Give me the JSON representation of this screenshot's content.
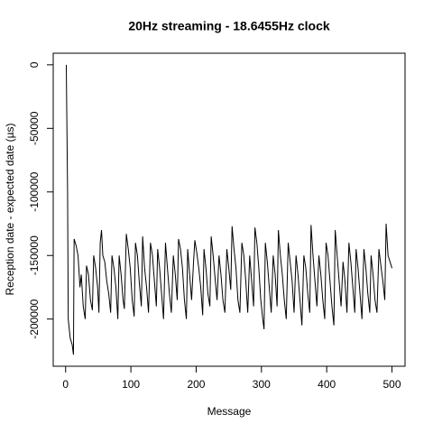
{
  "chart_data": {
    "type": "line",
    "title": "20Hz streaming - 18.6455Hz clock",
    "x_label": "Message",
    "y_label": "Reception date - expected date (µs)",
    "xlim": [
      -19,
      520
    ],
    "ylim": [
      -237120,
      9120
    ],
    "xticks": [
      0,
      100,
      200,
      300,
      400,
      500
    ],
    "yticks": [
      0,
      -50000,
      -100000,
      -150000,
      -200000
    ],
    "x": [
      1,
      3,
      4,
      7,
      10,
      12,
      13,
      16,
      19,
      22,
      24,
      27,
      30,
      32,
      35,
      38,
      41,
      43,
      46,
      49,
      51,
      53,
      55,
      57,
      60,
      63,
      66,
      69,
      71,
      74,
      77,
      80,
      82,
      85,
      88,
      90,
      93,
      96,
      99,
      102,
      105,
      107,
      110,
      113,
      116,
      118,
      121,
      124,
      127,
      130,
      133,
      136,
      139,
      141,
      144,
      147,
      150,
      153,
      156,
      159,
      162,
      165,
      168,
      171,
      173,
      176,
      179,
      182,
      185,
      187,
      190,
      193,
      196,
      198,
      201,
      204,
      207,
      210,
      212,
      215,
      218,
      221,
      223,
      226,
      229,
      232,
      235,
      238,
      241,
      244,
      247,
      250,
      253,
      255,
      258,
      261,
      264,
      267,
      270,
      273,
      276,
      279,
      282,
      285,
      288,
      290,
      293,
      296,
      299,
      302,
      304,
      306,
      309,
      312,
      315,
      318,
      321,
      324,
      326,
      329,
      332,
      335,
      338,
      341,
      344,
      347,
      350,
      353,
      356,
      359,
      362,
      365,
      368,
      371,
      374,
      376,
      379,
      382,
      385,
      388,
      391,
      394,
      397,
      399,
      402,
      405,
      408,
      411,
      413,
      416,
      419,
      422,
      425,
      428,
      431,
      434,
      437,
      440,
      443,
      445,
      448,
      451,
      454,
      457,
      460,
      463,
      466,
      468,
      471,
      474,
      477,
      480,
      483,
      486,
      489,
      491,
      494,
      497,
      500
    ],
    "series": [
      {
        "color": "#000000",
        "values": [
          0,
          -100000,
          -200000,
          -215000,
          -220000,
          -228000,
          -137000,
          -142000,
          -150000,
          -175000,
          -165000,
          -190000,
          -200000,
          -158000,
          -165000,
          -185000,
          -193000,
          -150000,
          -160000,
          -175000,
          -195000,
          -140000,
          -130000,
          -150000,
          -155000,
          -170000,
          -180000,
          -195000,
          -150000,
          -160000,
          -175000,
          -200000,
          -150000,
          -165000,
          -185000,
          -192000,
          -133000,
          -145000,
          -160000,
          -185000,
          -198000,
          -140000,
          -150000,
          -172000,
          -190000,
          -135000,
          -160000,
          -175000,
          -195000,
          -140000,
          -150000,
          -170000,
          -190000,
          -145000,
          -160000,
          -180000,
          -200000,
          -140000,
          -160000,
          -180000,
          -195000,
          -150000,
          -165000,
          -185000,
          -137000,
          -145000,
          -160000,
          -185000,
          -200000,
          -145000,
          -165000,
          -185000,
          -155000,
          -138000,
          -148000,
          -160000,
          -175000,
          -197000,
          -145000,
          -160000,
          -180000,
          -190000,
          -135000,
          -150000,
          -168000,
          -185000,
          -150000,
          -165000,
          -185000,
          -195000,
          -145000,
          -160000,
          -177000,
          -127000,
          -145000,
          -160000,
          -185000,
          -195000,
          -140000,
          -150000,
          -170000,
          -195000,
          -150000,
          -170000,
          -190000,
          -128000,
          -140000,
          -160000,
          -185000,
          -200000,
          -208000,
          -140000,
          -155000,
          -175000,
          -195000,
          -150000,
          -165000,
          -190000,
          -130000,
          -150000,
          -165000,
          -185000,
          -200000,
          -140000,
          -155000,
          -170000,
          -195000,
          -150000,
          -165000,
          -185000,
          -205000,
          -150000,
          -160000,
          -180000,
          -195000,
          -126000,
          -150000,
          -170000,
          -190000,
          -150000,
          -165000,
          -185000,
          -200000,
          -140000,
          -150000,
          -170000,
          -190000,
          -205000,
          -130000,
          -150000,
          -170000,
          -190000,
          -155000,
          -170000,
          -195000,
          -140000,
          -155000,
          -175000,
          -195000,
          -145000,
          -160000,
          -180000,
          -200000,
          -145000,
          -160000,
          -180000,
          -195000,
          -150000,
          -165000,
          -185000,
          -195000,
          -145000,
          -158000,
          -170000,
          -185000,
          -125000,
          -150000,
          -155000,
          -160000
        ]
      }
    ]
  }
}
